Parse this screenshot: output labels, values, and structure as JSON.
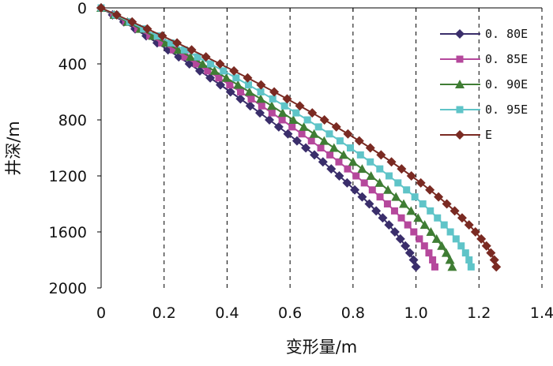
{
  "chart_data": {
    "type": "line",
    "xlabel": "变形量/m",
    "ylabel": "井深/m",
    "xlim": [
      0,
      1.4
    ],
    "ylim": [
      2000,
      0
    ],
    "x_ticks": [
      "0",
      "0.2",
      "0.4",
      "0.6",
      "0.8",
      "1.0",
      "1.2",
      "1.4"
    ],
    "y_ticks": [
      "0",
      "400",
      "800",
      "1200",
      "1600",
      "2000"
    ],
    "grid": "vertical dashed",
    "legend_position": "top-right",
    "depth_start": 0,
    "depth_step": 50,
    "depth_end": 1850,
    "series": [
      {
        "name": "0. 80E",
        "color": "#3a2e6b",
        "marker": "diamond",
        "final_deformation": 1.0,
        "exponent": 1.35
      },
      {
        "name": "0. 85E",
        "color": "#b5489c",
        "marker": "square",
        "final_deformation": 1.06,
        "exponent": 1.38
      },
      {
        "name": "0. 90E",
        "color": "#3f7d34",
        "marker": "triangle",
        "final_deformation": 1.115,
        "exponent": 1.4
      },
      {
        "name": "0. 95E",
        "color": "#5fc4c8",
        "marker": "square",
        "final_deformation": 1.175,
        "exponent": 1.44
      },
      {
        "name": "E",
        "color": "#7a2a22",
        "marker": "diamond",
        "final_deformation": 1.255,
        "exponent": 1.47
      }
    ]
  }
}
